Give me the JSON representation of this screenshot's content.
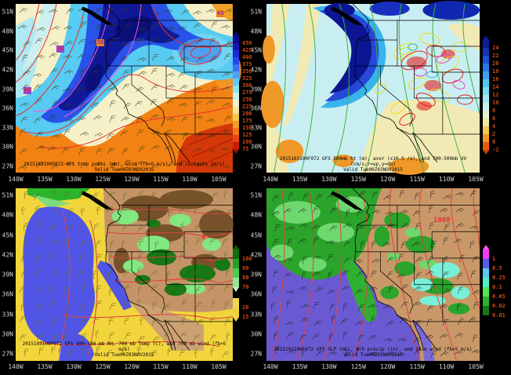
{
  "axes": {
    "lat_ticks": [
      "51N",
      "48N",
      "45N",
      "42N",
      "39N",
      "36N",
      "33N",
      "30N",
      "27N"
    ],
    "lon_ticks": [
      "140W",
      "135W",
      "130W",
      "125W",
      "120W",
      "115W",
      "110W",
      "105W"
    ]
  },
  "panels": {
    "trop": {
      "caption": "2015103100F072 GFS trop press (mb), wind (fb=5 m/s), and isotachs (m/s)",
      "valid": "Valid Tue00Z03NOV2015",
      "overlay_labels": [
        {
          "text": "45",
          "fg": "#e03030",
          "bg": "#9146d2"
        },
        {
          "text": "45",
          "fg": "#8c28c8",
          "bg": "#f08018"
        },
        {
          "text": "30",
          "fg": "#8c28c8",
          "bg": "#f08018"
        },
        {
          "text": "45",
          "fg": "#e03030",
          "bg": "#9146d2"
        }
      ],
      "colorbar": [
        {
          "c": "tipup:#0a0a8c"
        },
        {
          "c": "#0a0a8c",
          "v": "450"
        },
        {
          "c": "#1414b4",
          "v": "425"
        },
        {
          "c": "#1e28d2",
          "v": "400"
        },
        {
          "c": "#2846e6",
          "v": "375"
        },
        {
          "c": "#3c6ef0",
          "v": "350"
        },
        {
          "c": "#50a0f0",
          "v": "325"
        },
        {
          "c": "#64c8f0",
          "v": "300"
        },
        {
          "c": "#8ce6f0",
          "v": "275"
        },
        {
          "c": "#c8f0f0",
          "v": "250"
        },
        {
          "c": "#f0f0d2",
          "v": "225"
        },
        {
          "c": "#f0e6a0",
          "v": "200"
        },
        {
          "c": "#f0c850",
          "v": "175"
        },
        {
          "c": "#f0a028",
          "v": "150"
        },
        {
          "c": "#f07818",
          "v": "125"
        },
        {
          "c": "#e64614",
          "v": "100"
        },
        {
          "c": "#c81e0a",
          "v": "75"
        },
        {
          "c": "tipdown:#a01408"
        }
      ]
    },
    "h500": {
      "caption": "2015103100F072 GFS 500mb ht (m), avor (x10-5 /s), and 700-500mb VV (cm/s;r=up,y=dn)",
      "valid": "Valid Tue00Z03NOV2015",
      "colorbar": [
        {
          "c": "tipup:#0a1e96"
        },
        {
          "c": "#0a1e96",
          "v": "24"
        },
        {
          "c": "#1432b4",
          "v": "22"
        },
        {
          "c": "#1e50d2",
          "v": "20"
        },
        {
          "c": "#2878e6",
          "v": "18"
        },
        {
          "c": "#3ca0f0",
          "v": "16"
        },
        {
          "c": "#50c8f0",
          "v": "14"
        },
        {
          "c": "#78dcf0",
          "v": "12"
        },
        {
          "c": "#a0e6f0",
          "v": "10"
        },
        {
          "c": "#c8f0f0",
          "v": "8"
        },
        {
          "c": "#e6f0d2",
          "v": "6"
        },
        {
          "c": "#f0e6a0",
          "v": "4"
        },
        {
          "c": "#f0c850",
          "v": "2"
        },
        {
          "c": "#f09628",
          "v": "0"
        },
        {
          "c": "#e65a14",
          "v": "-2"
        },
        {
          "c": "tipdown:#d23c0a"
        }
      ]
    },
    "rh": {
      "caption": "2015103100F072 GFS 800-500 mb RH, 700 mb Temp (C), and 700 mb wind (fb=5 m/s)",
      "valid": "Valid Tue00Z03NOV2015",
      "overlay_labels": [
        {
          "text": "8",
          "fg": "#e03030"
        }
      ],
      "colorbar": [
        {
          "c": "tipup:#0b5e0b"
        },
        {
          "c": "#0f6e0f",
          "v": "100"
        },
        {
          "c": "#28a028",
          "v": "90"
        },
        {
          "c": "#50c850",
          "v": "80"
        },
        {
          "c": "#96e696",
          "v": "70"
        },
        {
          "c": "tipdown:#c8f0c8"
        },
        {
          "c": "gap"
        },
        {
          "c": "#f0d850",
          "v": "20"
        },
        {
          "c": "#f0d23c",
          "v": "15"
        },
        {
          "c": "tipdown:#f0d23c"
        }
      ]
    },
    "slp": {
      "caption": "2015103100F072 GFS SLP (mb), 6-h precip (in), and 10-m wind (fb=5 m/s)",
      "valid": "Valid Tue00Z03NOV2015",
      "overlay_labels": [
        {
          "text": "1008",
          "fg": "#e03030"
        }
      ],
      "colorbar": [
        {
          "c": "tipup:#ff50ff"
        },
        {
          "c": "#f03cf0",
          "v": "1"
        },
        {
          "c": "#5a5af0",
          "v": "0.5"
        },
        {
          "c": "#5ac8f0",
          "v": "0.25"
        },
        {
          "c": "#50f0c8",
          "v": "0.1"
        },
        {
          "c": "#50e650",
          "v": "0.05"
        },
        {
          "c": "#28b428",
          "v": "0.02"
        },
        {
          "c": "#147814",
          "v": "0.01"
        }
      ]
    }
  }
}
